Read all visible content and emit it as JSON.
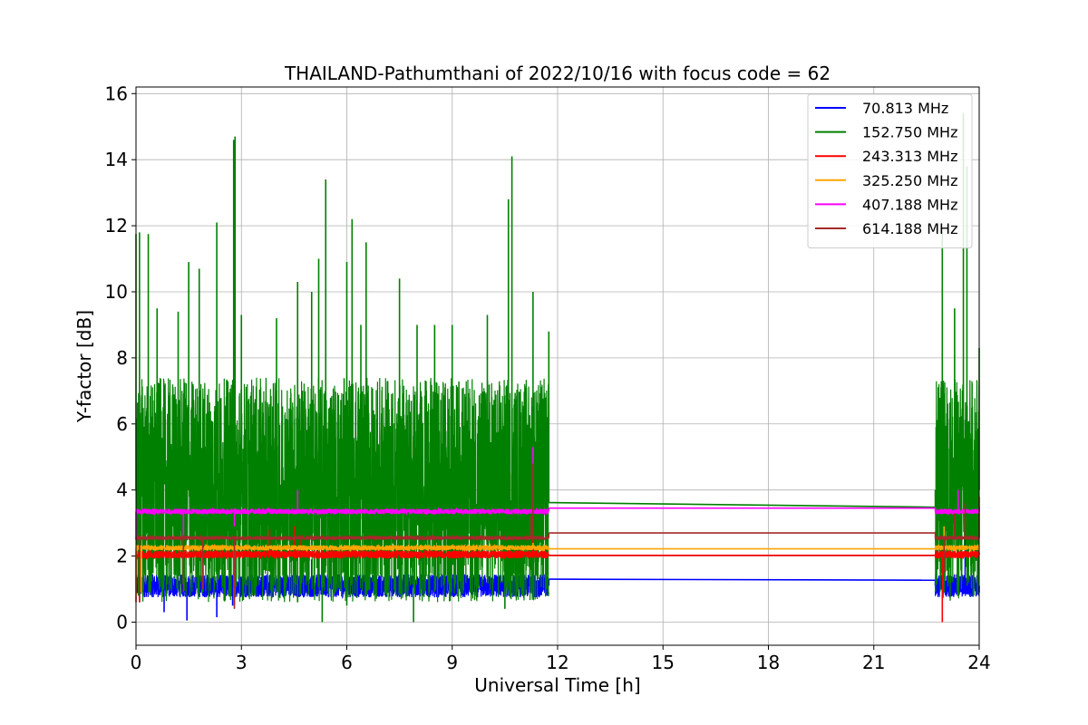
{
  "chart_data": {
    "type": "line",
    "title": "THAILAND-Pathumthani of 2022/10/16 with focus code = 62",
    "xlabel": "Universal Time [h]",
    "ylabel": "Y-factor [dB]",
    "xlim": [
      0,
      24
    ],
    "ylim": [
      -0.7,
      16.2
    ],
    "xticks": [
      0,
      3,
      6,
      9,
      12,
      15,
      18,
      21,
      24
    ],
    "yticks": [
      0,
      2,
      4,
      6,
      8,
      10,
      12,
      14,
      16
    ],
    "xtick_labels": [
      "0",
      "3",
      "6",
      "9",
      "12",
      "15",
      "18",
      "21",
      "24"
    ],
    "ytick_labels": [
      "0",
      "2",
      "4",
      "6",
      "8",
      "10",
      "12",
      "14",
      "16"
    ],
    "grid": true,
    "legend_position": "top-right",
    "data_gap": [
      11.75,
      22.75
    ],
    "series": [
      {
        "name": " 70.813 MHz",
        "color": "#0000ff",
        "baseline": 1.1,
        "noise": 0.35,
        "gap_values": [
          1.3,
          1.27
        ],
        "points": [
          [
            0.1,
            0.6
          ],
          [
            0.5,
            1.2
          ],
          [
            0.8,
            0.3
          ],
          [
            1.2,
            1.0
          ],
          [
            1.45,
            0.05
          ],
          [
            2.0,
            1.1
          ],
          [
            2.3,
            0.15
          ],
          [
            2.75,
            0.5
          ],
          [
            3.5,
            1.1
          ],
          [
            4.5,
            0.8
          ],
          [
            5.0,
            1.9
          ],
          [
            6.0,
            1.0
          ],
          [
            7.0,
            1.2
          ],
          [
            8.0,
            0.9
          ],
          [
            9.0,
            1.1
          ],
          [
            10.0,
            1.3
          ],
          [
            11.0,
            1.0
          ],
          [
            11.75,
            1.3
          ],
          [
            22.75,
            1.27
          ],
          [
            23.2,
            0.9
          ],
          [
            23.6,
            2.6
          ],
          [
            24.0,
            0.9
          ]
        ]
      },
      {
        "name": "152.750 MHz",
        "color": "#008000",
        "baseline": 4.0,
        "noise": 3.4,
        "gap_values": [
          3.62,
          3.48
        ],
        "points": [
          [
            0.0,
            11.75
          ],
          [
            0.1,
            11.8
          ],
          [
            0.35,
            11.75
          ],
          [
            0.6,
            9.5
          ],
          [
            1.2,
            9.4
          ],
          [
            1.5,
            10.9
          ],
          [
            1.8,
            10.7
          ],
          [
            2.3,
            12.1
          ],
          [
            2.78,
            14.6
          ],
          [
            2.82,
            14.7
          ],
          [
            3.0,
            9.3
          ],
          [
            4.0,
            9.2
          ],
          [
            4.6,
            10.3
          ],
          [
            5.0,
            10.0
          ],
          [
            5.2,
            11.0
          ],
          [
            5.4,
            13.4
          ],
          [
            6.0,
            10.9
          ],
          [
            6.15,
            12.2
          ],
          [
            6.4,
            9.0
          ],
          [
            6.55,
            11.5
          ],
          [
            7.5,
            10.4
          ],
          [
            8.0,
            9.0
          ],
          [
            8.5,
            9.0
          ],
          [
            9.0,
            9.0
          ],
          [
            10.0,
            9.3
          ],
          [
            10.6,
            12.8
          ],
          [
            10.7,
            14.1
          ],
          [
            11.3,
            10.0
          ],
          [
            11.75,
            8.8
          ],
          [
            11.75,
            3.62
          ],
          [
            22.75,
            3.48
          ],
          [
            22.95,
            11.8
          ],
          [
            23.3,
            9.5
          ],
          [
            23.55,
            15.4
          ],
          [
            23.65,
            13.8
          ],
          [
            24.0,
            8.3
          ],
          [
            5.3,
            0.0
          ],
          [
            7.9,
            0.0
          ],
          [
            4.6,
            0.6
          ],
          [
            6.0,
            0.5
          ],
          [
            10.5,
            0.4
          ],
          [
            23.0,
            0.9
          ]
        ]
      },
      {
        "name": "243.313 MHz",
        "color": "#ff0000",
        "baseline": 2.05,
        "noise": 0.12,
        "gap_values": [
          2.02,
          2.02
        ],
        "points": [
          [
            0.0,
            0.6
          ],
          [
            0.1,
            0.6
          ],
          [
            0.3,
            1.9
          ],
          [
            1.3,
            2.0
          ],
          [
            2.8,
            0.5
          ],
          [
            3.0,
            2.0
          ],
          [
            3.8,
            2.8
          ],
          [
            4.5,
            2.9
          ],
          [
            4.7,
            2.5
          ],
          [
            5.0,
            2.0
          ],
          [
            8.0,
            2.05
          ],
          [
            11.0,
            2.1
          ],
          [
            11.3,
            4.5
          ],
          [
            11.4,
            2.2
          ],
          [
            11.75,
            2.05
          ],
          [
            22.75,
            2.02
          ],
          [
            22.95,
            0.0
          ],
          [
            23.2,
            2.1
          ],
          [
            24.0,
            2.1
          ]
        ]
      },
      {
        "name": "325.250 MHz",
        "color": "#ffa500",
        "baseline": 2.25,
        "noise": 0.08,
        "gap_values": [
          2.22,
          2.22
        ],
        "points": [
          [
            0.0,
            0.8
          ],
          [
            0.15,
            0.9
          ],
          [
            0.3,
            2.2
          ],
          [
            2.8,
            0.6
          ],
          [
            3.0,
            2.2
          ],
          [
            6.0,
            2.3
          ],
          [
            9.0,
            2.25
          ],
          [
            11.3,
            2.4
          ],
          [
            11.75,
            2.25
          ],
          [
            22.75,
            2.22
          ],
          [
            23.0,
            2.9
          ],
          [
            23.2,
            2.3
          ],
          [
            24.0,
            2.3
          ]
        ]
      },
      {
        "name": "407.188 MHz",
        "color": "#ff00ff",
        "baseline": 3.35,
        "noise": 0.08,
        "gap_values": [
          3.45,
          3.45
        ],
        "points": [
          [
            0.0,
            2.5
          ],
          [
            0.1,
            3.4
          ],
          [
            0.5,
            3.25
          ],
          [
            1.3,
            3.3
          ],
          [
            1.35,
            2.6
          ],
          [
            2.8,
            2.9
          ],
          [
            4.6,
            4.0
          ],
          [
            4.7,
            3.35
          ],
          [
            6.0,
            3.3
          ],
          [
            9.0,
            3.35
          ],
          [
            11.0,
            3.4
          ],
          [
            11.3,
            5.3
          ],
          [
            11.4,
            3.45
          ],
          [
            11.75,
            3.45
          ],
          [
            22.75,
            3.45
          ],
          [
            23.4,
            4.0
          ],
          [
            24.0,
            3.5
          ]
        ]
      },
      {
        "name": "614.188 MHz",
        "color": "#a52a2a",
        "baseline": 2.55,
        "noise": 0.06,
        "gap_values": [
          2.7,
          2.7
        ],
        "points": [
          [
            0.0,
            2.5
          ],
          [
            0.1,
            0.8
          ],
          [
            0.2,
            2.5
          ],
          [
            1.3,
            2.55
          ],
          [
            1.35,
            0.9
          ],
          [
            1.9,
            1.0
          ],
          [
            2.8,
            0.4
          ],
          [
            3.0,
            2.55
          ],
          [
            6.0,
            2.55
          ],
          [
            9.0,
            2.55
          ],
          [
            11.25,
            3.2
          ],
          [
            11.3,
            4.8
          ],
          [
            11.75,
            2.7
          ],
          [
            22.75,
            2.7
          ],
          [
            23.0,
            1.5
          ],
          [
            23.3,
            3.3
          ],
          [
            23.6,
            3.6
          ],
          [
            24.0,
            3.8
          ]
        ]
      }
    ]
  }
}
